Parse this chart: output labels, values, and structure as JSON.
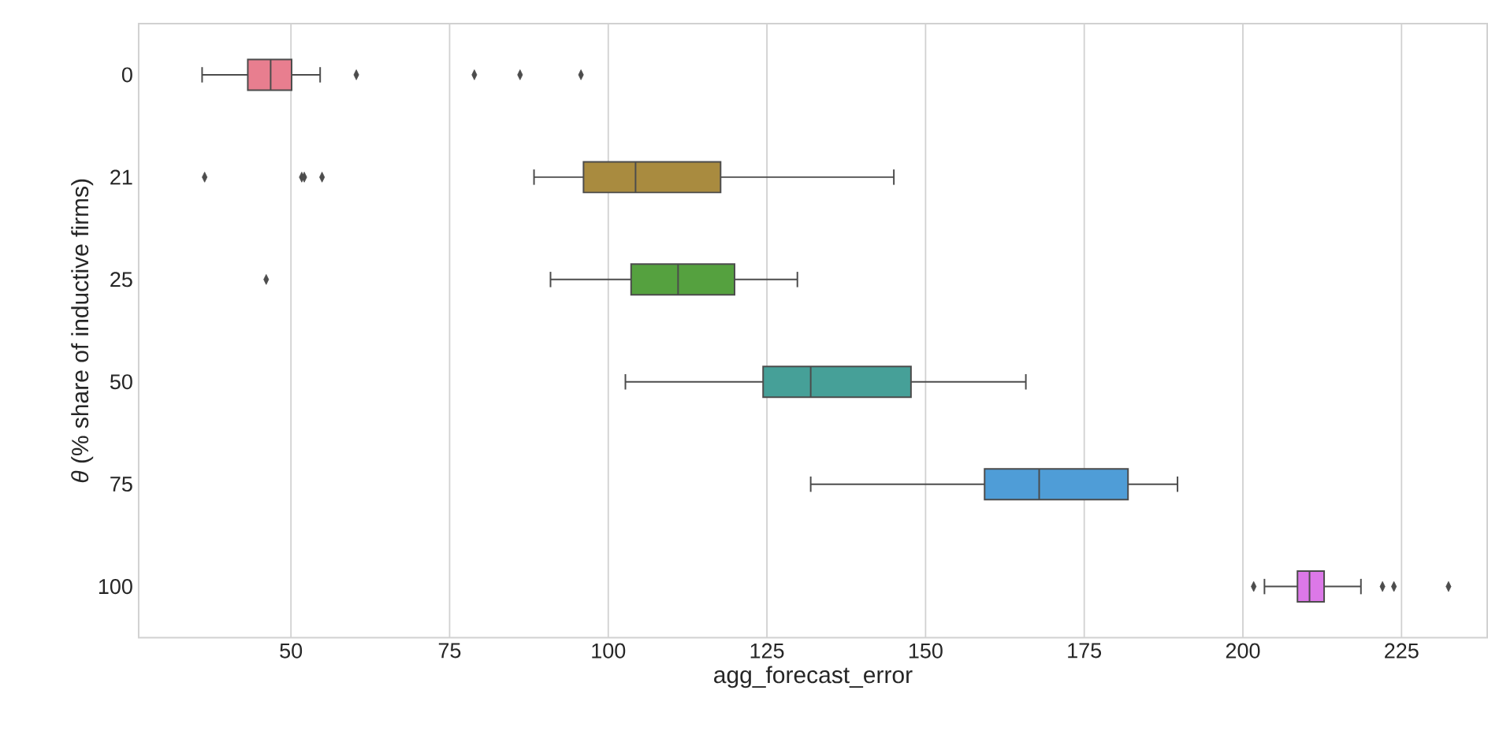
{
  "chart_data": {
    "type": "box",
    "orientation": "horizontal",
    "xlabel": "agg_forecast_error",
    "ylabel": "*θ* (% share of inductive firms)",
    "categories": [
      "0",
      "21",
      "25",
      "50",
      "75",
      "100"
    ],
    "colors": [
      "#e87e8f",
      "#a98b3f",
      "#55a13f",
      "#46a098",
      "#4f9dd7",
      "#dc78e8"
    ],
    "boxes": [
      {
        "low": 36.0,
        "q1": 43.2,
        "median": 46.8,
        "q3": 50.1,
        "high": 54.6,
        "outliers": [
          60.3,
          78.9,
          86.1,
          95.7
        ]
      },
      {
        "low": 88.3,
        "q1": 96.1,
        "median": 104.3,
        "q3": 117.7,
        "high": 145.0,
        "outliers": [
          36.4,
          51.7,
          52.1,
          54.9
        ]
      },
      {
        "low": 90.9,
        "q1": 103.6,
        "median": 111.0,
        "q3": 119.9,
        "high": 129.8,
        "outliers": [
          46.1
        ]
      },
      {
        "low": 102.7,
        "q1": 124.4,
        "median": 131.9,
        "q3": 147.7,
        "high": 165.8
      },
      {
        "low": 131.9,
        "q1": 159.3,
        "median": 167.9,
        "q3": 181.9,
        "high": 189.7
      },
      {
        "low": 203.4,
        "q1": 208.6,
        "median": 210.5,
        "q3": 212.8,
        "high": 218.6,
        "outliers": [
          201.7,
          222.0,
          223.8,
          232.4
        ]
      }
    ],
    "xlim": [
      26,
      238.5
    ],
    "xticks": [
      50,
      75,
      100,
      125,
      150,
      175,
      200,
      225
    ],
    "grid": "x"
  }
}
